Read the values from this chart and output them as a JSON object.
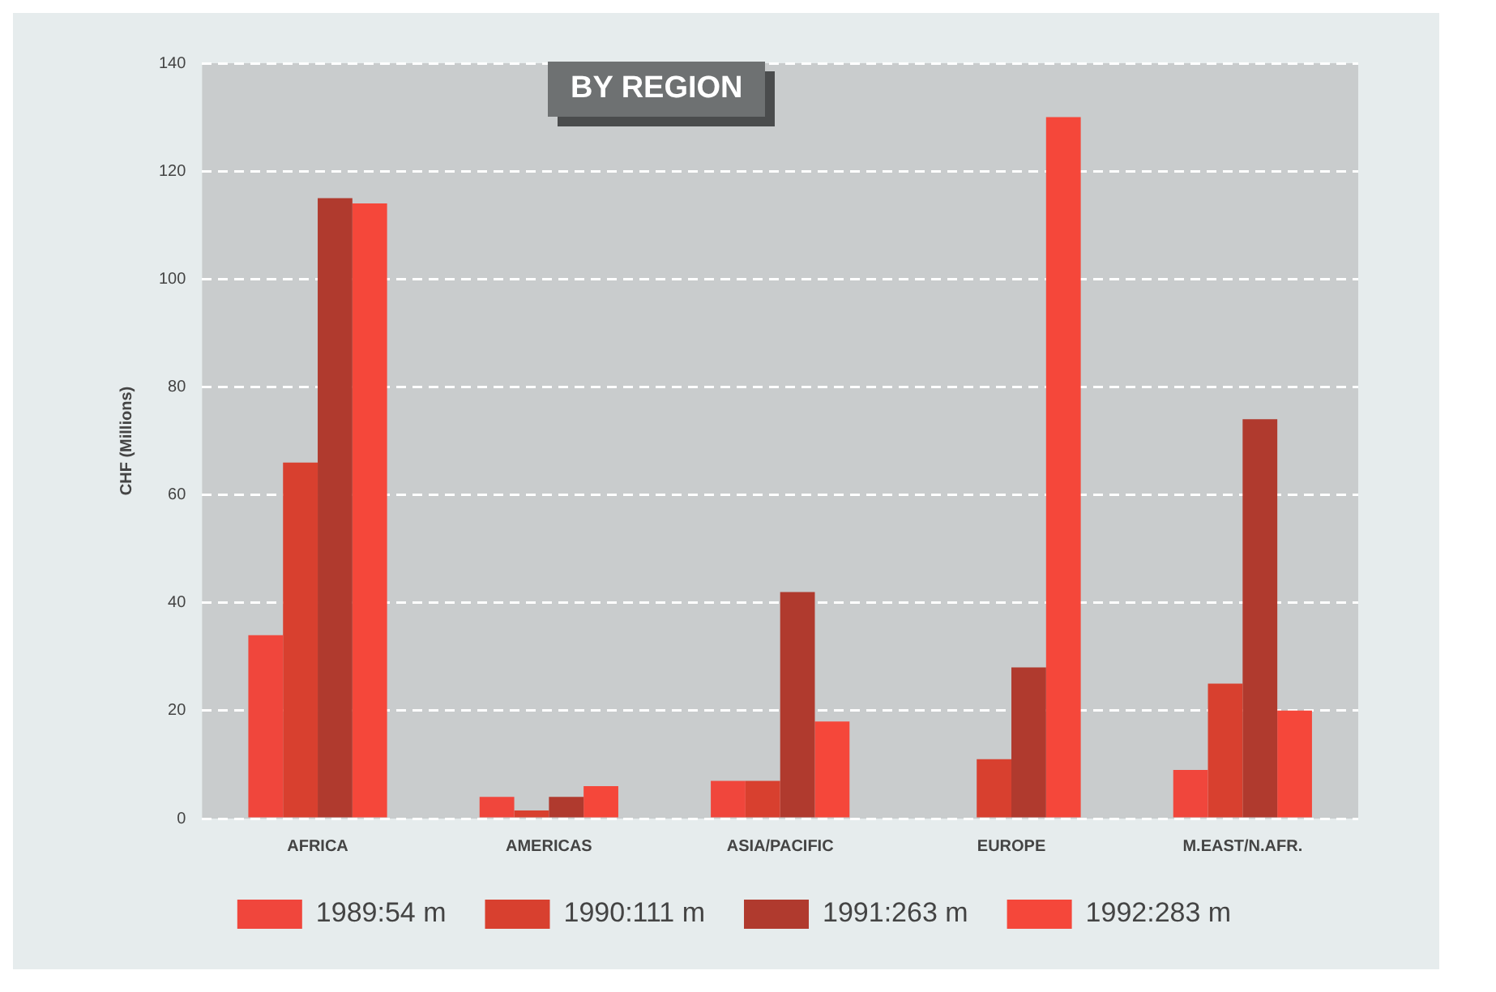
{
  "chart_data": {
    "type": "bar",
    "title": "BY REGION",
    "ylabel": "CHF (Millions)",
    "categories": [
      "AFRICA",
      "AMERICAS",
      "ASIA/PACIFIC",
      "EUROPE",
      "M.EAST/N.AFR."
    ],
    "series": [
      {
        "name": "1989:54 m",
        "color": "#f0463c",
        "values": [
          34,
          4,
          7,
          0,
          9
        ]
      },
      {
        "name": "1990:111 m",
        "color": "#d8402f",
        "values": [
          66,
          1.5,
          7,
          11,
          25
        ]
      },
      {
        "name": "1991:263 m",
        "color": "#b03a2e",
        "values": [
          115,
          4,
          42,
          28,
          74
        ]
      },
      {
        "name": "1992:283 m",
        "color": "#f5473a",
        "values": [
          114,
          6,
          18,
          130,
          20
        ]
      }
    ],
    "ylim": [
      0,
      140
    ],
    "yticks": [
      0,
      20,
      40,
      60,
      80,
      100,
      120,
      140
    ],
    "grid": "y",
    "legend": "bottom"
  }
}
